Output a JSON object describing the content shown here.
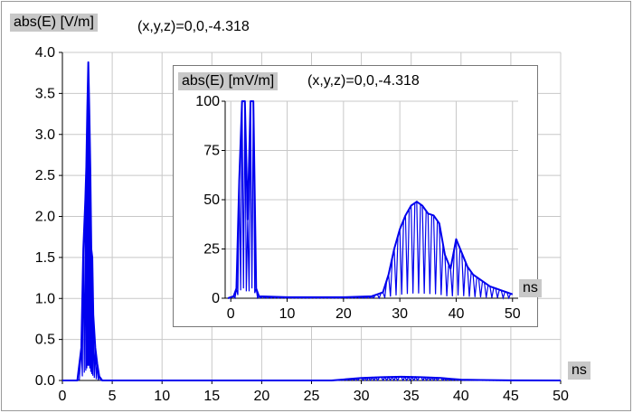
{
  "main": {
    "ylabel": "abs(E) [V/m]",
    "location": "(x,y,z)=0,0,-4.318",
    "xunit": "ns"
  },
  "inset": {
    "ylabel": "abs(E) [mV/m]",
    "location": "(x,y,z)=0,0,-4.318",
    "xunit": "ns"
  },
  "colors": {
    "series": "#0000ee",
    "grid": "#c8c8c8",
    "label_bg": "#c8c8c8"
  },
  "chart_data": [
    {
      "type": "line",
      "ylabel": "abs(E) [V/m]",
      "xlabel": "ns",
      "xlim": [
        0,
        50
      ],
      "ylim": [
        0,
        4
      ],
      "xticks": [
        0,
        5,
        10,
        15,
        20,
        25,
        30,
        35,
        40,
        45,
        50
      ],
      "yticks": [
        0,
        0.5,
        1,
        1.5,
        2,
        2.5,
        3,
        3.5,
        4
      ],
      "ytick_labels": [
        "0.0",
        "0.5",
        "1.0",
        "1.5",
        "2.0",
        "2.5",
        "3.0",
        "3.5",
        "4.0"
      ],
      "grid": true,
      "series": [
        {
          "x": [
            0,
            1.5,
            1.9,
            2.1,
            2.3,
            2.4,
            2.5,
            2.6,
            2.7,
            2.8,
            2.9,
            3.0,
            3.1,
            3.3,
            3.5,
            3.7,
            4.0,
            5,
            10,
            20,
            27,
            28,
            30,
            32,
            34,
            36,
            38,
            39,
            40,
            42,
            45,
            50
          ],
          "y": [
            0,
            0,
            0.4,
            1.6,
            2.2,
            2.6,
            3.3,
            3.88,
            3.3,
            2.6,
            1.6,
            1.5,
            0.8,
            0.4,
            0.2,
            0.05,
            0,
            0,
            0,
            0,
            0,
            0.01,
            0.03,
            0.04,
            0.045,
            0.04,
            0.03,
            0.02,
            0.01,
            0.005,
            0.002,
            0
          ]
        }
      ]
    },
    {
      "type": "line",
      "ylabel": "abs(E) [mV/m]",
      "xlabel": "ns",
      "xlim": [
        -1,
        51
      ],
      "ylim": [
        0,
        100
      ],
      "xticks": [
        0,
        10,
        20,
        30,
        40,
        50
      ],
      "yticks": [
        0,
        25,
        50,
        75,
        100
      ],
      "grid": true,
      "series": [
        {
          "x": [
            -0.5,
            0.5,
            1.0,
            1.5,
            2.0,
            2.5,
            3.0,
            3.5,
            4.0,
            4.5,
            5,
            10,
            20,
            25,
            26,
            27,
            28,
            29,
            30,
            31,
            32,
            33,
            34,
            35,
            36,
            37,
            38,
            39,
            40,
            41,
            42,
            43,
            44,
            45,
            46,
            47,
            48,
            49,
            50
          ],
          "y": [
            0,
            1,
            5,
            60,
            100,
            100,
            40,
            100,
            100,
            5,
            1,
            0.5,
            0.5,
            1,
            2,
            3,
            12,
            25,
            35,
            42,
            47,
            49,
            47,
            43,
            42,
            38,
            22,
            15,
            30,
            23,
            16,
            12,
            10,
            8,
            6,
            5,
            4,
            3,
            2
          ]
        }
      ]
    }
  ]
}
